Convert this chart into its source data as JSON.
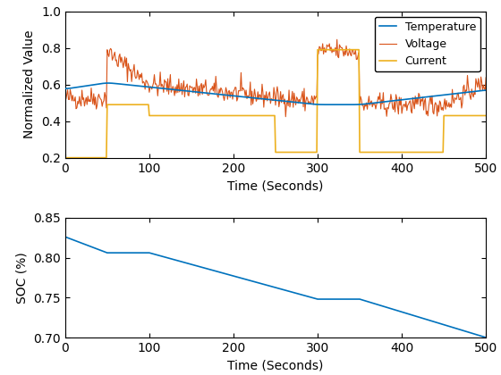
{
  "fig_width": 5.6,
  "fig_height": 4.2,
  "dpi": 100,
  "background_color": "#ffffff",
  "ax1": {
    "xlabel": "Time (Seconds)",
    "ylabel": "Normalized Value",
    "xlim": [
      0,
      500
    ],
    "ylim": [
      0.2,
      1.0
    ],
    "yticks": [
      0.2,
      0.4,
      0.6,
      0.8,
      1.0
    ],
    "xticks": [
      0,
      100,
      200,
      300,
      400,
      500
    ],
    "legend_labels": [
      "Temperature",
      "Voltage",
      "Current"
    ],
    "temperature_color": "#0072BD",
    "voltage_color": "#D95319",
    "current_color": "#EDB120"
  },
  "ax2": {
    "xlabel": "Time (Seconds)",
    "ylabel": "SOC (%)",
    "xlim": [
      0,
      500
    ],
    "ylim": [
      0.7,
      0.85
    ],
    "yticks": [
      0.7,
      0.75,
      0.8,
      0.85
    ],
    "xticks": [
      0,
      100,
      200,
      300,
      400,
      500
    ],
    "soc_color": "#0072BD"
  },
  "label_fontsize": 10,
  "tick_fontsize": 10,
  "legend_fontsize": 9
}
